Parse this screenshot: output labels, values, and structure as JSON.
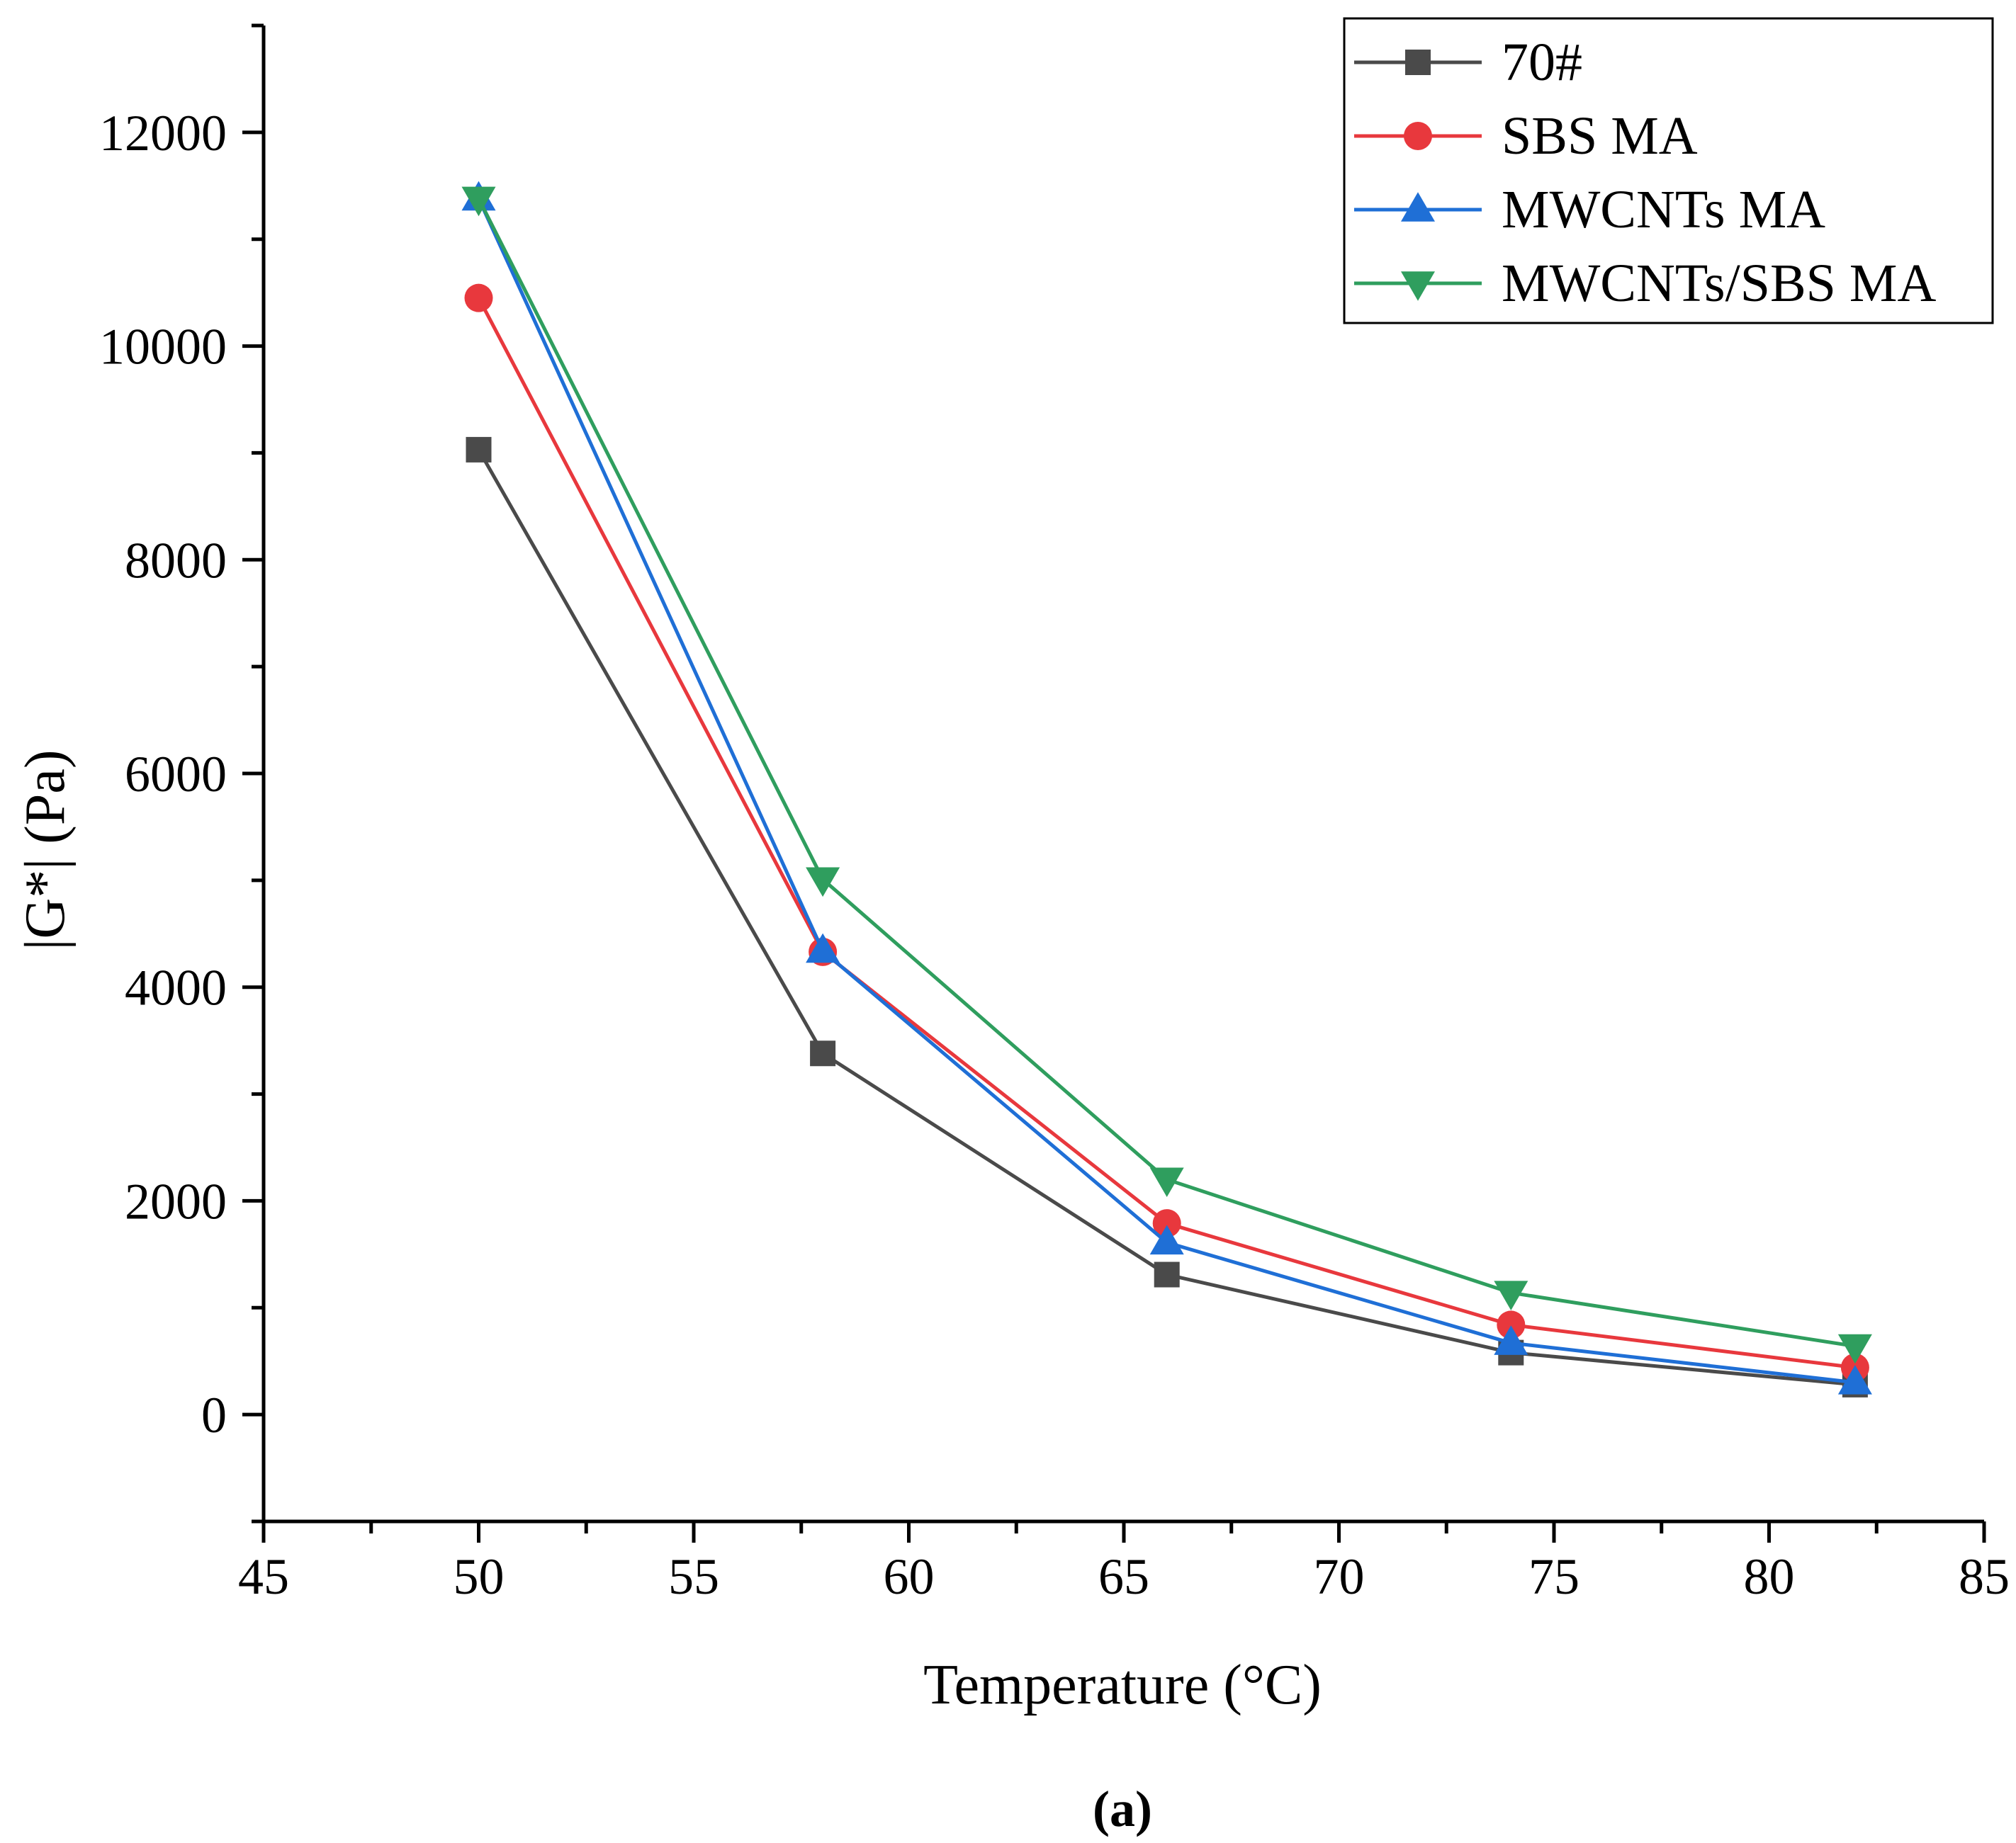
{
  "chart_data": {
    "type": "line",
    "title": "",
    "xlabel": "Temperature (°C)",
    "ylabel": "|G*|  (Pa)",
    "caption": "(a)",
    "xlim": [
      45,
      85
    ],
    "ylim": [
      -1000,
      13000
    ],
    "x_ticks": [
      45,
      50,
      55,
      60,
      65,
      70,
      75,
      80,
      85
    ],
    "x_minor_ticks": [
      47.5,
      52.5,
      57.5,
      62.5,
      67.5,
      72.5,
      77.5,
      82.5
    ],
    "y_ticks": [
      0,
      2000,
      4000,
      6000,
      8000,
      10000,
      12000
    ],
    "y_minor_ticks": [
      -1000,
      1000,
      3000,
      5000,
      7000,
      9000,
      11000,
      13000
    ],
    "grid": false,
    "legend_position": "top-right",
    "x": [
      50,
      58,
      66,
      74,
      82
    ],
    "series": [
      {
        "name": "70#",
        "marker": "square",
        "color": "#4a4a4a",
        "values": [
          9030,
          3380,
          1310,
          580,
          280
        ]
      },
      {
        "name": "SBS MA",
        "marker": "circle",
        "color": "#e8383d",
        "values": [
          10450,
          4330,
          1790,
          840,
          440
        ]
      },
      {
        "name": "MWCNTs MA",
        "marker": "triangle-up",
        "color": "#1f6fd6",
        "values": [
          11380,
          4340,
          1610,
          670,
          300
        ]
      },
      {
        "name": "MWCNTs/SBS MA",
        "marker": "triangle-down",
        "color": "#2f9e5e",
        "values": [
          11380,
          5010,
          2200,
          1140,
          640
        ]
      }
    ]
  }
}
